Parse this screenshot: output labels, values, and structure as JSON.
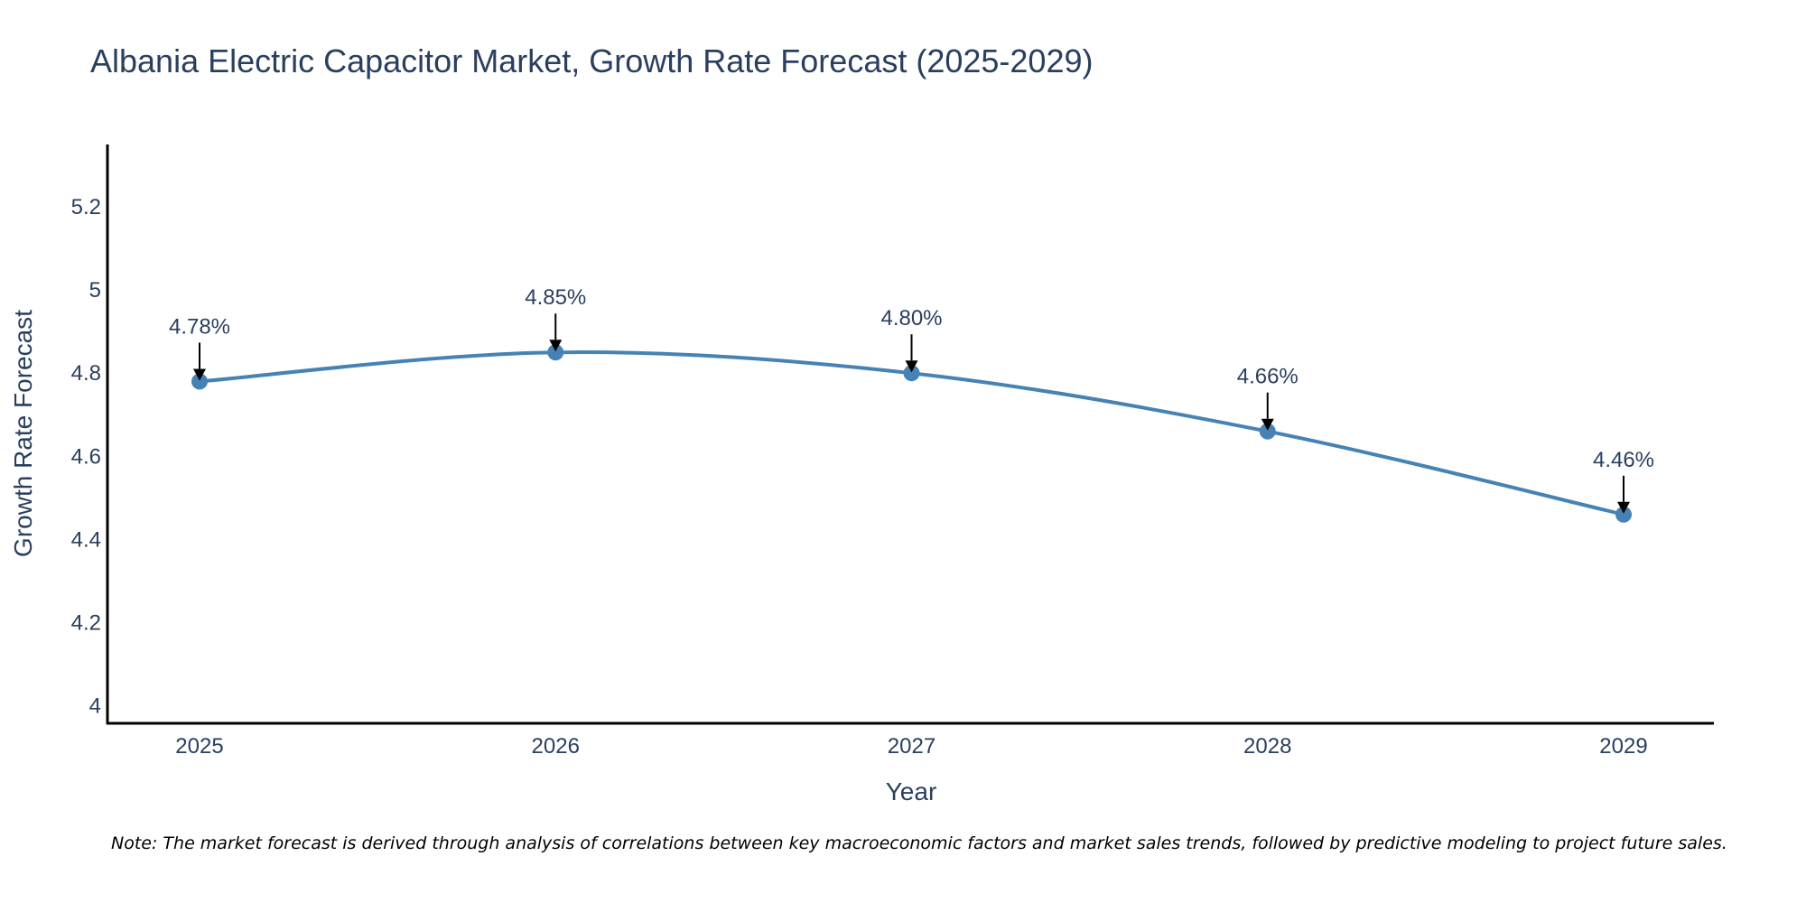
{
  "chart_data": {
    "type": "line",
    "title": "Albania Electric Capacitor Market, Growth Rate Forecast (2025-2029)",
    "xlabel": "Year",
    "ylabel": "Growth Rate Forecast",
    "categories": [
      "2025",
      "2026",
      "2027",
      "2028",
      "2029"
    ],
    "values": [
      4.78,
      4.85,
      4.8,
      4.66,
      4.46
    ],
    "data_labels": [
      "4.78%",
      "4.85%",
      "4.80%",
      "4.66%",
      "4.46%"
    ],
    "ylim": [
      3.96,
      5.35
    ],
    "yticks": [
      4,
      4.2,
      4.4,
      4.6,
      4.8,
      5,
      5.2
    ],
    "ytick_labels": [
      "4",
      "4.2",
      "4.4",
      "4.6",
      "4.8",
      "5",
      "5.2"
    ],
    "grid": false,
    "line_shape": "spline",
    "series_color": "#4682b4",
    "note": "Note: The market forecast is derived through analysis of correlations between key macroeconomic factors and market sales trends, followed by predictive modeling to project future sales."
  }
}
